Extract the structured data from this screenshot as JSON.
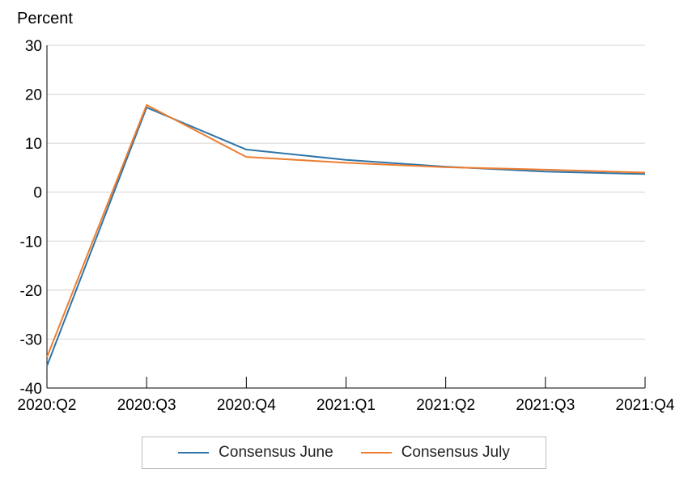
{
  "chart_data": {
    "type": "line",
    "ylabel": "Percent",
    "x": [
      "2020:Q2",
      "2020:Q3",
      "2020:Q4",
      "2021:Q1",
      "2021:Q2",
      "2021:Q3",
      "2021:Q4"
    ],
    "ylim": [
      -40,
      30
    ],
    "yticks": [
      30,
      20,
      10,
      0,
      -10,
      -20,
      -30,
      -40
    ],
    "grid": true,
    "legend_position": "bottom",
    "series": [
      {
        "name": "Consensus June",
        "color": "#2e75a8",
        "values": [
          -35.5,
          17.3,
          8.7,
          6.6,
          5.2,
          4.2,
          3.7
        ]
      },
      {
        "name": "Consensus July",
        "color": "#ed7d31",
        "values": [
          -33.7,
          17.8,
          7.2,
          6.0,
          5.1,
          4.6,
          4.0
        ]
      }
    ]
  }
}
